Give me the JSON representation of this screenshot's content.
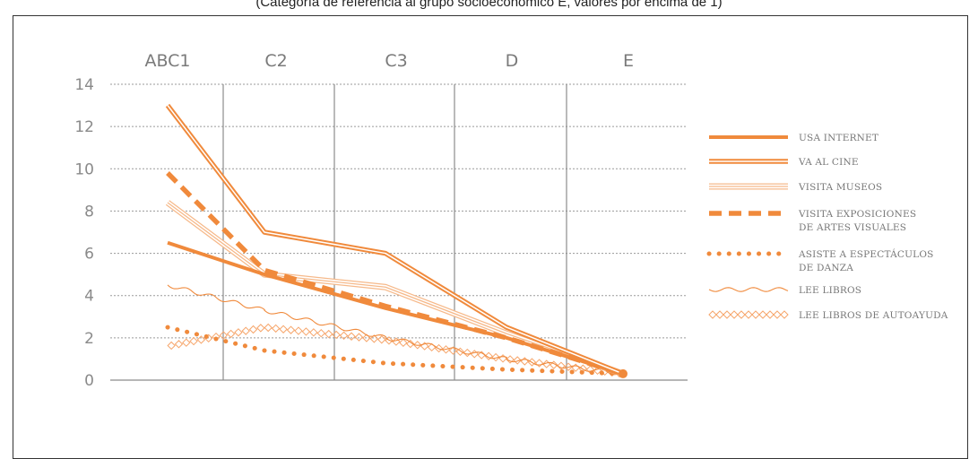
{
  "caption": "(Categoría de referencia al grupo socioeconómico E, valores por encima de 1)",
  "chart_data": {
    "type": "line",
    "categories": [
      "ABC1",
      "C2",
      "C3",
      "D",
      "E"
    ],
    "ylim": [
      0,
      14
    ],
    "yticks": [
      0,
      2,
      4,
      6,
      8,
      10,
      12,
      14
    ],
    "grid": true,
    "legend_position": "right",
    "accent_color": "#f08a3c",
    "series": [
      {
        "name": "USA INTERNET",
        "style": "thick",
        "values": [
          6.5,
          5.0,
          3.4,
          2.0,
          0.3
        ]
      },
      {
        "name": "VA AL CINE",
        "style": "double",
        "values": [
          13.0,
          7.0,
          6.0,
          2.5,
          0.3
        ]
      },
      {
        "name": "VISITA MUSEOS",
        "style": "triple",
        "values": [
          8.4,
          5.0,
          4.4,
          2.2,
          0.3
        ]
      },
      {
        "name": "VISITA EXPOSICIONES DE ARTES VISUALES",
        "style": "dashed",
        "values": [
          9.8,
          5.2,
          3.5,
          2.0,
          0.3
        ]
      },
      {
        "name": "ASISTE A ESPECTÁCULOS DE DANZA",
        "style": "dotted",
        "values": [
          2.5,
          1.4,
          0.8,
          0.5,
          0.3
        ]
      },
      {
        "name": "LEE LIBROS",
        "style": "wavy",
        "values": [
          4.5,
          3.3,
          2.0,
          1.0,
          0.3
        ]
      },
      {
        "name": "LEE LIBROS DE AUTOAYUDA",
        "style": "diamonds",
        "values": [
          1.6,
          2.5,
          1.9,
          1.0,
          0.3
        ]
      }
    ]
  },
  "legend_lines": [
    [
      "USA INTERNET"
    ],
    [
      "VA AL CINE"
    ],
    [
      "VISITA MUSEOS"
    ],
    [
      "VISITA EXPOSICIONES",
      "DE ARTES  VISUALES"
    ],
    [
      "ASISTE A ESPECTÁCULOS",
      "DE DANZA"
    ],
    [
      "LEE LIBROS"
    ],
    [
      "LEE LIBROS DE AUTOAYUDA"
    ]
  ]
}
